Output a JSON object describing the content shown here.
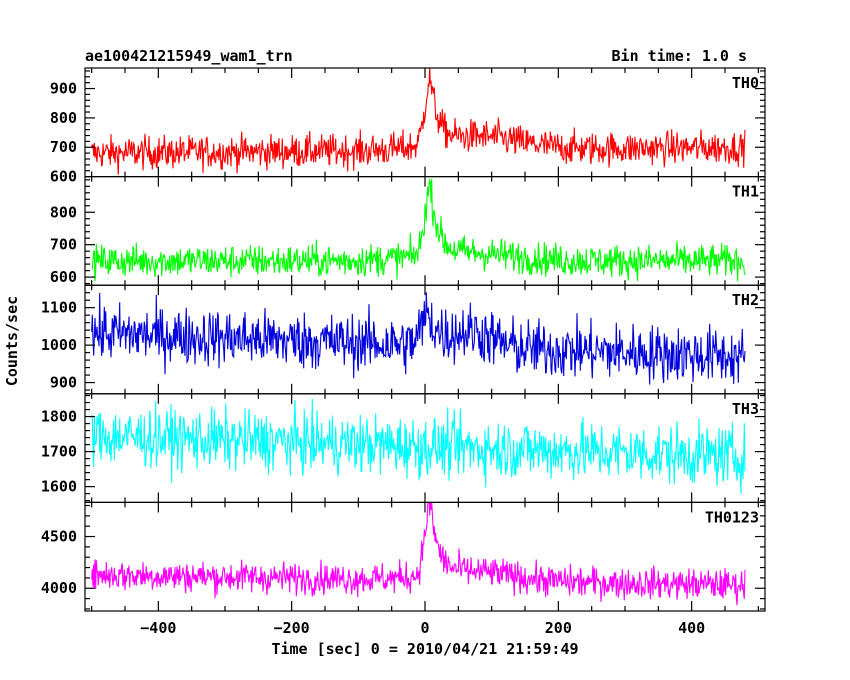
{
  "chart_data": {
    "type": "line",
    "title_left": "ae100421215949_wam1_trn",
    "title_right": "Bin time: 1.0 s",
    "xlabel": "Time [sec] 0 = 2010/04/21 21:59:49",
    "ylabel": "Counts/sec",
    "xlim": [
      -510,
      510
    ],
    "x_range": [
      -500,
      480
    ],
    "bin_time": 1.0,
    "xticks": [
      -400,
      -200,
      0,
      200,
      400
    ],
    "panels": [
      {
        "name": "TH0",
        "color": "#ff0000",
        "ylim": [
          600,
          970
        ],
        "yticks": [
          600,
          700,
          800,
          900
        ],
        "baseline": 690,
        "trend": 0.02,
        "noise": 28,
        "peak": 220,
        "peak_t": 8,
        "rise": 8,
        "decay": 12,
        "post_bump": 45,
        "post_t": 80,
        "post_w": 60
      },
      {
        "name": "TH1",
        "color": "#00ff00",
        "ylim": [
          575,
          910
        ],
        "yticks": [
          600,
          700,
          800
        ],
        "baseline": 650,
        "trend": 0.0,
        "noise": 25,
        "peak": 210,
        "peak_t": 8,
        "rise": 8,
        "decay": 12,
        "post_bump": 25,
        "post_t": 60,
        "post_w": 70
      },
      {
        "name": "TH2",
        "color": "#0000dd",
        "ylim": [
          870,
          1160
        ],
        "yticks": [
          900,
          1000,
          1100
        ],
        "baseline": 1000,
        "trend": -0.065,
        "noise": 38,
        "peak": 80,
        "peak_t": 5,
        "rise": 10,
        "decay": 15,
        "post_bump": 40,
        "post_t": 70,
        "post_w": 30
      },
      {
        "name": "TH3",
        "color": "#00ffff",
        "ylim": [
          1555,
          1865
        ],
        "yticks": [
          1600,
          1700,
          1800
        ],
        "baseline": 1715,
        "trend": -0.06,
        "noise": 42,
        "peak": 0,
        "peak_t": 0,
        "rise": 10,
        "decay": 10,
        "post_bump": 0,
        "post_t": 0,
        "post_w": 10
      },
      {
        "name": "TH0123",
        "color": "#ff00ff",
        "ylim": [
          3780,
          4830
        ],
        "yticks": [
          4000,
          4500
        ],
        "baseline": 4080,
        "trend": -0.1,
        "noise": 75,
        "peak": 680,
        "peak_t": 8,
        "rise": 8,
        "decay": 12,
        "post_bump": 90,
        "post_t": 70,
        "post_w": 60
      }
    ]
  }
}
